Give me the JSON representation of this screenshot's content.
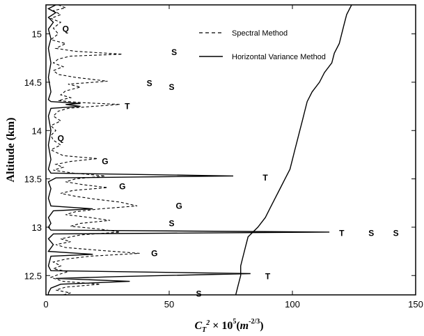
{
  "chart_data": {
    "type": "line",
    "xlabel": "C_T² × 10⁵(m^-2/3)",
    "ylabel": "Altitude (km)",
    "xlim": [
      0,
      150
    ],
    "ylim": [
      12.3,
      15.3
    ],
    "x_ticks": [
      "0",
      "50",
      "100",
      "150"
    ],
    "y_ticks": [
      "12.5",
      "13",
      "13.5",
      "14",
      "14.5",
      "15"
    ],
    "legend_position": "top-right",
    "series": [
      {
        "name": "Spectral Method",
        "style": "dashed",
        "color": "#000000",
        "points": [
          [
            5,
            15.3
          ],
          [
            8,
            15.27
          ],
          [
            3,
            15.24
          ],
          [
            6,
            15.2
          ],
          [
            2,
            15.16
          ],
          [
            6,
            15.12
          ],
          [
            3,
            15.06
          ],
          [
            5,
            15.0
          ],
          [
            2,
            14.94
          ],
          [
            8,
            14.9
          ],
          [
            4,
            14.85
          ],
          [
            12,
            14.82
          ],
          [
            31,
            14.79
          ],
          [
            10,
            14.77
          ],
          [
            5,
            14.74
          ],
          [
            3,
            14.7
          ],
          [
            7,
            14.66
          ],
          [
            3,
            14.62
          ],
          [
            5,
            14.58
          ],
          [
            12,
            14.55
          ],
          [
            25,
            14.51
          ],
          [
            9,
            14.48
          ],
          [
            14,
            14.45
          ],
          [
            8,
            14.41
          ],
          [
            6,
            14.37
          ],
          [
            10,
            14.34
          ],
          [
            5,
            14.31
          ],
          [
            14,
            14.29
          ],
          [
            30,
            14.27
          ],
          [
            19,
            14.25
          ],
          [
            9,
            14.23
          ],
          [
            5,
            14.2
          ],
          [
            3,
            14.15
          ],
          [
            6,
            14.1
          ],
          [
            2,
            14.05
          ],
          [
            4,
            14.0
          ],
          [
            2,
            13.95
          ],
          [
            3,
            13.9
          ],
          [
            6,
            13.85
          ],
          [
            2,
            13.8
          ],
          [
            7,
            13.74
          ],
          [
            21,
            13.71
          ],
          [
            10,
            13.68
          ],
          [
            4,
            13.65
          ],
          [
            7,
            13.62
          ],
          [
            3,
            13.59
          ],
          [
            11,
            13.56
          ],
          [
            24,
            13.53
          ],
          [
            12,
            13.5
          ],
          [
            8,
            13.47
          ],
          [
            15,
            13.44
          ],
          [
            25,
            13.41
          ],
          [
            11,
            13.38
          ],
          [
            6,
            13.35
          ],
          [
            12,
            13.32
          ],
          [
            20,
            13.29
          ],
          [
            30,
            13.26
          ],
          [
            37,
            13.22
          ],
          [
            22,
            13.19
          ],
          [
            12,
            13.16
          ],
          [
            8,
            13.13
          ],
          [
            18,
            13.1
          ],
          [
            26,
            13.07
          ],
          [
            14,
            13.04
          ],
          [
            10,
            13.01
          ],
          [
            22,
            12.98
          ],
          [
            30,
            12.95
          ],
          [
            14,
            12.92
          ],
          [
            6,
            12.88
          ],
          [
            10,
            12.85
          ],
          [
            4,
            12.82
          ],
          [
            8,
            12.79
          ],
          [
            22,
            12.76
          ],
          [
            38,
            12.73
          ],
          [
            18,
            12.7
          ],
          [
            8,
            12.67
          ],
          [
            3,
            12.64
          ],
          [
            6,
            12.6
          ],
          [
            3,
            12.57
          ],
          [
            9,
            12.54
          ],
          [
            5,
            12.51
          ],
          [
            2,
            12.48
          ],
          [
            7,
            12.44
          ],
          [
            22,
            12.41
          ],
          [
            8,
            12.38
          ],
          [
            4,
            12.35
          ],
          [
            10,
            12.32
          ],
          [
            7,
            12.3
          ]
        ]
      },
      {
        "name": "Horizontal Variance Method",
        "style": "solid",
        "color": "#000000",
        "points": [
          [
            4,
            15.3
          ],
          [
            1,
            15.26
          ],
          [
            4,
            15.22
          ],
          [
            1,
            15.17
          ],
          [
            3,
            15.12
          ],
          [
            1,
            15.05
          ],
          [
            2,
            14.95
          ],
          [
            1,
            14.85
          ],
          [
            2,
            14.7
          ],
          [
            1,
            14.55
          ],
          [
            2,
            14.4
          ],
          [
            1,
            14.32
          ],
          [
            2,
            14.3
          ],
          [
            14,
            14.28
          ],
          [
            8,
            14.27
          ],
          [
            14,
            14.25
          ],
          [
            2,
            14.23
          ],
          [
            1,
            14.15
          ],
          [
            2,
            14.0
          ],
          [
            1,
            13.85
          ],
          [
            2,
            13.7
          ],
          [
            1,
            13.6
          ],
          [
            2,
            13.56
          ],
          [
            76,
            13.53
          ],
          [
            4,
            13.51
          ],
          [
            1,
            13.47
          ],
          [
            2,
            13.4
          ],
          [
            1,
            13.3
          ],
          [
            2,
            13.22
          ],
          [
            19,
            13.19
          ],
          [
            3,
            13.17
          ],
          [
            1,
            13.1
          ],
          [
            2,
            13.04
          ],
          [
            1,
            13.0
          ],
          [
            2,
            12.97
          ],
          [
            115,
            12.95
          ],
          [
            3,
            12.93
          ],
          [
            1,
            12.88
          ],
          [
            3,
            12.82
          ],
          [
            1,
            12.75
          ],
          [
            19,
            12.72
          ],
          [
            2,
            12.7
          ],
          [
            1,
            12.6
          ],
          [
            2,
            12.55
          ],
          [
            83,
            12.52
          ],
          [
            30,
            12.49
          ],
          [
            4,
            12.47
          ],
          [
            34,
            12.44
          ],
          [
            6,
            12.41
          ],
          [
            2,
            12.37
          ],
          [
            1,
            12.32
          ],
          [
            1,
            12.3
          ]
        ]
      },
      {
        "name": "",
        "style": "solid",
        "color": "#000000",
        "points": [
          [
            124,
            15.3
          ],
          [
            122,
            15.2
          ],
          [
            121,
            15.1
          ],
          [
            120,
            15.0
          ],
          [
            119,
            14.9
          ],
          [
            117,
            14.8
          ],
          [
            116,
            14.7
          ],
          [
            113,
            14.6
          ],
          [
            111,
            14.5
          ],
          [
            108,
            14.4
          ],
          [
            106,
            14.3
          ],
          [
            105,
            14.2
          ],
          [
            104,
            14.1
          ],
          [
            103,
            14.0
          ],
          [
            102,
            13.9
          ],
          [
            101,
            13.8
          ],
          [
            100,
            13.7
          ],
          [
            99,
            13.6
          ],
          [
            97,
            13.5
          ],
          [
            95,
            13.4
          ],
          [
            93,
            13.3
          ],
          [
            91,
            13.2
          ],
          [
            89,
            13.1
          ],
          [
            86,
            13.0
          ],
          [
            82,
            12.9
          ],
          [
            81,
            12.8
          ],
          [
            80,
            12.7
          ],
          [
            79,
            12.6
          ],
          [
            79,
            12.5
          ],
          [
            78,
            12.4
          ],
          [
            77,
            12.3
          ]
        ]
      }
    ],
    "annotations": [
      {
        "text": "Q",
        "x": 8,
        "y": 15.05
      },
      {
        "text": "S",
        "x": 52,
        "y": 14.81
      },
      {
        "text": "S",
        "x": 42,
        "y": 14.49
      },
      {
        "text": "S",
        "x": 51,
        "y": 14.45
      },
      {
        "text": "T",
        "x": 33,
        "y": 14.25
      },
      {
        "text": "Q",
        "x": 6,
        "y": 13.92
      },
      {
        "text": "G",
        "x": 24,
        "y": 13.68
      },
      {
        "text": "T",
        "x": 89,
        "y": 13.51
      },
      {
        "text": "G",
        "x": 31,
        "y": 13.42
      },
      {
        "text": "G",
        "x": 54,
        "y": 13.22
      },
      {
        "text": "S",
        "x": 51,
        "y": 13.04
      },
      {
        "text": "T",
        "x": 120,
        "y": 12.94
      },
      {
        "text": "S",
        "x": 132,
        "y": 12.94
      },
      {
        "text": "S",
        "x": 142,
        "y": 12.94
      },
      {
        "text": "G",
        "x": 44,
        "y": 12.73
      },
      {
        "text": "T",
        "x": 90,
        "y": 12.49
      },
      {
        "text": "S",
        "x": 62,
        "y": 12.31
      }
    ]
  }
}
